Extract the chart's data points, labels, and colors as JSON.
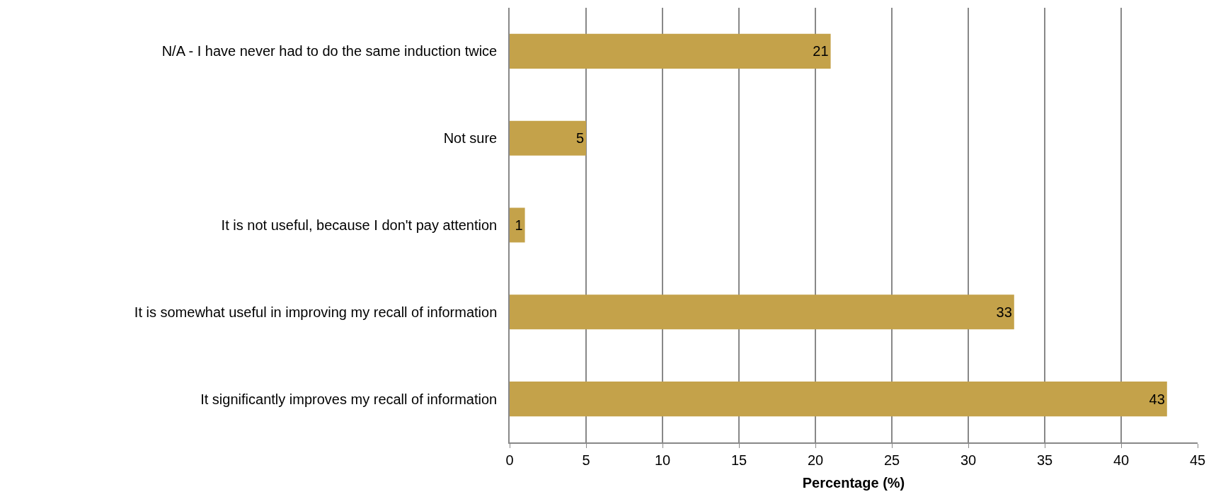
{
  "chart_data": {
    "type": "bar",
    "orientation": "horizontal",
    "xlabel": "Percentage (%)",
    "categories": [
      "N/A - I have never had to do the same induction twice",
      "Not sure",
      "It is not useful, because I don't pay attention",
      "It is somewhat useful in improving my recall of information",
      "It significantly improves my recall of information"
    ],
    "values": [
      21,
      5,
      1,
      33,
      43
    ],
    "color": "#c4a24a",
    "data_labels": true,
    "xlim": [
      0,
      45
    ],
    "xticks": [
      0,
      5,
      10,
      15,
      20,
      25,
      30,
      35,
      40,
      45
    ],
    "grid": "x",
    "legend": false
  }
}
